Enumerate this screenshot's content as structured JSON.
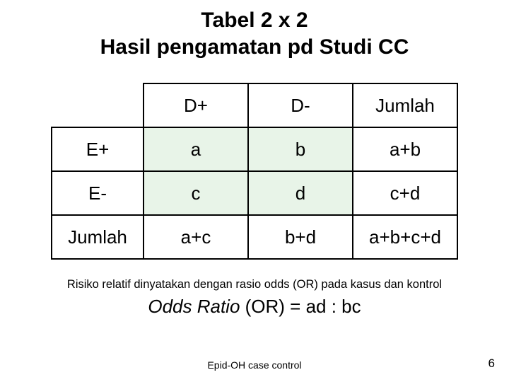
{
  "title_line1": "Tabel 2 x 2",
  "title_line2": "Hasil pengamatan pd Studi CC",
  "table": {
    "col_headers": [
      "D+",
      "D-",
      "Jumlah"
    ],
    "row_headers": [
      "E+",
      "E-",
      "Jumlah"
    ],
    "rows": [
      [
        "a",
        "b",
        "a+b"
      ],
      [
        "c",
        "d",
        "c+d"
      ],
      [
        "a+c",
        "b+d",
        "a+b+c+d"
      ]
    ],
    "shaded_cell_bg": "#e8f4e8",
    "border_color": "#000000",
    "cell_fontsize": 26
  },
  "caption": "Risiko relatif dinyatakan dengan rasio odds (OR) pada kasus dan kontrol",
  "formula_italic": "Odds Ratio",
  "formula_rest": " (OR) = ad : bc",
  "footer_text": "Epid-OH case control",
  "page_number": "6"
}
